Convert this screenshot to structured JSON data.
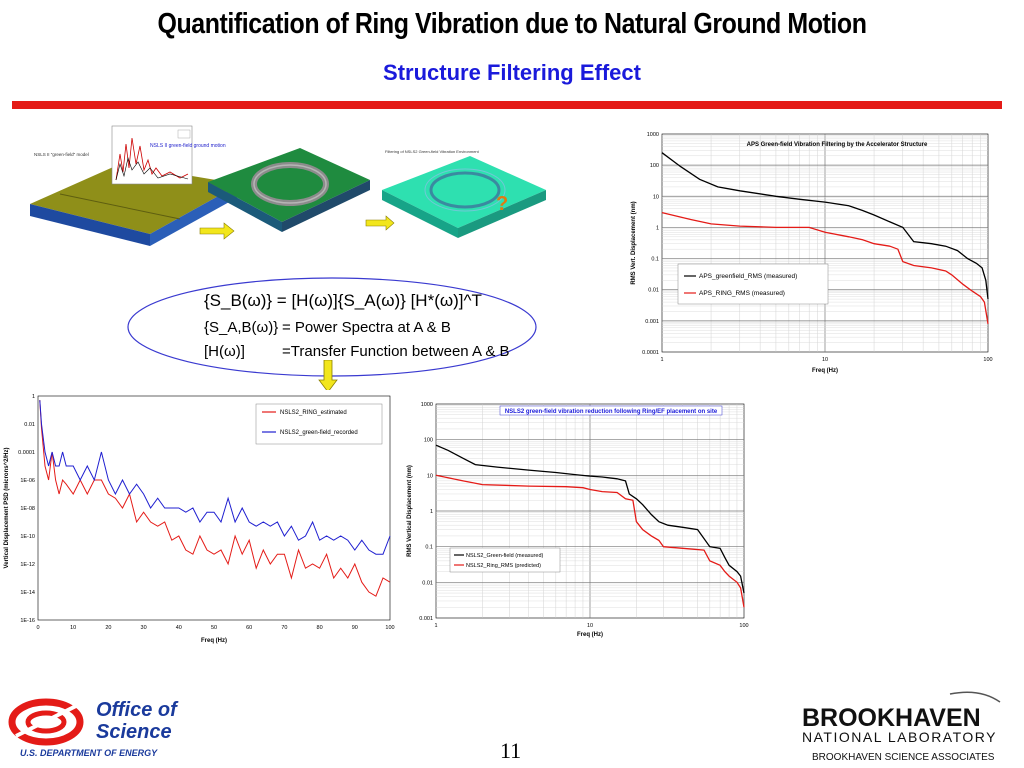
{
  "slide": {
    "title": "Quantification of Ring Vibration due to Natural Ground Motion",
    "subtitle": "Structure Filtering Effect",
    "page_number": "11",
    "accent_color": "#e41b17",
    "subtitle_color": "#1a1adb"
  },
  "illustration": {
    "model_label": "NSLS II \"green-field\" model",
    "ground_motion_label": "NSLS II green-field ground motion",
    "filtering_label": "Filtering of NSLS2 Green-field Vibration Environment",
    "question_mark": "?",
    "arrow_icon": "right-arrow-icon",
    "down_arrow_icon": "down-arrow-icon"
  },
  "equations": {
    "line1": "{S_B(ω)} = [H(ω)]{S_A(ω)} [H*(ω)]^T",
    "line2_lhs": "{S_A,B(ω)}",
    "line2_rhs": "= Power Spectra at A & B",
    "line3_lhs": "[H(ω)]",
    "line3_rhs": "=Transfer Function between A & B"
  },
  "chart_data": [
    {
      "id": "aps",
      "type": "line",
      "title": "APS Green-field Vibration Filtering by the Accelerator Structure",
      "xlabel": "Freq (Hz)",
      "ylabel": "RMS Vert. Displacement (nm)",
      "xscale": "log",
      "yscale": "log",
      "xlim": [
        1,
        100
      ],
      "ylim": [
        0.0001,
        1000
      ],
      "xticks": [
        "1",
        "10",
        "100"
      ],
      "yticks": [
        "0.0001",
        "0.001",
        "0.01",
        "0.1",
        "1",
        "10",
        "100",
        "1000"
      ],
      "grid": true,
      "legend_position": "center-left",
      "series": [
        {
          "name": "APS_greenfield_RMS (measured)",
          "color": "#000000",
          "points": [
            [
              1,
              250
            ],
            [
              1.3,
              90
            ],
            [
              1.7,
              35
            ],
            [
              2.2,
              20
            ],
            [
              3,
              15
            ],
            [
              5,
              10
            ],
            [
              7,
              8
            ],
            [
              10,
              6.5
            ],
            [
              14,
              5
            ],
            [
              17,
              3.5
            ],
            [
              20,
              2.5
            ],
            [
              25,
              1.5
            ],
            [
              30,
              1
            ],
            [
              35,
              0.35
            ],
            [
              45,
              0.3
            ],
            [
              55,
              0.25
            ],
            [
              65,
              0.18
            ],
            [
              75,
              0.1
            ],
            [
              85,
              0.07
            ],
            [
              92,
              0.05
            ],
            [
              97,
              0.02
            ],
            [
              100,
              0.005
            ]
          ]
        },
        {
          "name": "APS_RING_RMS (measured)",
          "color": "#e41b17",
          "points": [
            [
              1,
              3
            ],
            [
              1.5,
              1.8
            ],
            [
              2,
              1.3
            ],
            [
              3,
              1.1
            ],
            [
              5,
              1
            ],
            [
              8,
              1
            ],
            [
              10,
              0.7
            ],
            [
              14,
              0.5
            ],
            [
              17,
              0.4
            ],
            [
              20,
              0.3
            ],
            [
              25,
              0.25
            ],
            [
              28,
              0.2
            ],
            [
              30,
              0.08
            ],
            [
              35,
              0.06
            ],
            [
              45,
              0.05
            ],
            [
              55,
              0.04
            ],
            [
              60,
              0.03
            ],
            [
              70,
              0.015
            ],
            [
              80,
              0.009
            ],
            [
              90,
              0.006
            ],
            [
              95,
              0.004
            ],
            [
              100,
              0.0008
            ]
          ]
        }
      ]
    },
    {
      "id": "psd",
      "type": "line",
      "title": "",
      "xlabel": "Freq (Hz)",
      "ylabel": "Vertical Displacement PSD (microns^2/Hz)",
      "yscale": "log",
      "xlim": [
        0,
        100
      ],
      "ylim": [
        1e-16,
        1
      ],
      "xticks": [
        "0",
        "10",
        "20",
        "30",
        "40",
        "50",
        "60",
        "70",
        "80",
        "90",
        "100"
      ],
      "yticks": [
        "1E-16",
        "1E-14",
        "1E-12",
        "1E-10",
        "1E-08",
        "1E-06",
        "0.0001",
        "0.01",
        "1"
      ],
      "grid": false,
      "legend_position": "top-right",
      "series": [
        {
          "name": "NSLS2_RING_estimated",
          "color": "#e41b17",
          "x": [
            0.5,
            1,
            2,
            3,
            4,
            5,
            6,
            7,
            8,
            10,
            12,
            14,
            16,
            18,
            20,
            22,
            24,
            26,
            28,
            30,
            32,
            34,
            36,
            38,
            40,
            42,
            44,
            46,
            48,
            50,
            52,
            54,
            56,
            58,
            60,
            62,
            64,
            66,
            68,
            70,
            72,
            74,
            76,
            78,
            80,
            82,
            84,
            86,
            88,
            90,
            92,
            94,
            96,
            98,
            100
          ],
          "y": [
            0.5,
            0.005,
            1e-05,
            1e-06,
            0.0001,
            1e-06,
            1e-07,
            1e-06,
            5e-07,
            1e-07,
            1e-06,
            1e-07,
            1e-06,
            1e-06,
            1e-07,
            5e-08,
            1e-08,
            1e-07,
            1e-09,
            5e-09,
            1e-09,
            5e-10,
            1e-09,
            5e-11,
            1e-10,
            1e-11,
            5e-12,
            1e-10,
            1e-11,
            5e-12,
            1e-11,
            1e-12,
            1e-10,
            5e-12,
            5e-11,
            5e-13,
            1e-11,
            1e-12,
            5e-12,
            5e-12,
            1e-13,
            1e-11,
            5e-13,
            1e-12,
            5e-13,
            5e-12,
            1e-13,
            5e-13,
            1e-13,
            1e-12,
            5e-14,
            1e-14,
            5e-15,
            1e-13,
            5e-14
          ]
        },
        {
          "name": "NSLS2_green-field_recorded",
          "color": "#1f1fd0",
          "x": [
            0.5,
            1,
            2,
            3,
            4,
            5,
            6,
            7,
            8,
            10,
            12,
            14,
            16,
            18,
            20,
            22,
            24,
            26,
            28,
            30,
            32,
            34,
            36,
            38,
            40,
            42,
            44,
            46,
            48,
            50,
            52,
            54,
            56,
            58,
            60,
            62,
            64,
            66,
            68,
            70,
            72,
            74,
            76,
            78,
            80,
            82,
            84,
            86,
            88,
            90,
            92,
            94,
            96,
            98,
            100
          ],
          "y": [
            0.5,
            0.01,
            0.0001,
            1e-05,
            0.0001,
            1e-05,
            1e-05,
            0.0001,
            1e-05,
            1e-05,
            1e-06,
            1e-05,
            1e-06,
            0.0001,
            1e-06,
            1e-07,
            1e-06,
            1e-07,
            5e-07,
            1e-07,
            1e-08,
            5e-08,
            1e-08,
            1e-08,
            1e-08,
            5e-09,
            1e-08,
            1e-09,
            5e-09,
            5e-09,
            1e-09,
            5e-08,
            1e-09,
            1e-08,
            1e-09,
            5e-10,
            1e-09,
            5e-10,
            1e-09,
            1e-10,
            5e-10,
            5e-11,
            1e-10,
            1e-09,
            5e-11,
            1e-10,
            5e-11,
            1e-10,
            5e-11,
            1e-11,
            5e-11,
            1e-11,
            5e-12,
            5e-12,
            1e-10
          ]
        }
      ]
    },
    {
      "id": "nsls2",
      "type": "line",
      "title": "NSLS2 green-field vibration reduction  following Ring/EF placement on site",
      "xlabel": "Freq (Hz)",
      "ylabel": "RMS Vertical Displacement (nm)",
      "xscale": "log",
      "yscale": "log",
      "xlim": [
        1,
        100
      ],
      "ylim": [
        0.001,
        1000
      ],
      "xticks": [
        "1",
        "10",
        "100"
      ],
      "yticks": [
        "0.001",
        "0.01",
        "0.1",
        "1",
        "10",
        "100",
        "1000"
      ],
      "grid": true,
      "legend_position": "bottom-left",
      "series": [
        {
          "name": "NSLS2_Green-field (measured)",
          "color": "#000000",
          "points": [
            [
              1,
              70
            ],
            [
              1.2,
              50
            ],
            [
              1.5,
              30
            ],
            [
              1.8,
              20
            ],
            [
              2.5,
              17
            ],
            [
              4,
              14
            ],
            [
              6,
              12
            ],
            [
              8,
              10.5
            ],
            [
              10,
              9.5
            ],
            [
              12,
              9
            ],
            [
              15,
              8
            ],
            [
              17,
              7
            ],
            [
              18,
              3
            ],
            [
              20,
              2.2
            ],
            [
              22,
              1.5
            ],
            [
              25,
              0.8
            ],
            [
              28,
              0.5
            ],
            [
              32,
              0.4
            ],
            [
              40,
              0.35
            ],
            [
              50,
              0.3
            ],
            [
              60,
              0.1
            ],
            [
              70,
              0.09
            ],
            [
              75,
              0.05
            ],
            [
              80,
              0.03
            ],
            [
              90,
              0.02
            ],
            [
              95,
              0.015
            ],
            [
              100,
              0.005
            ]
          ]
        },
        {
          "name": "NSLS2_Ring_RMS (predicted)",
          "color": "#e41b17",
          "points": [
            [
              1,
              10
            ],
            [
              1.5,
              7
            ],
            [
              2,
              5.5
            ],
            [
              4,
              5
            ],
            [
              7,
              4.8
            ],
            [
              9,
              4.5
            ],
            [
              10,
              4
            ],
            [
              12,
              3.5
            ],
            [
              15,
              3.3
            ],
            [
              17,
              2.2
            ],
            [
              19,
              2
            ],
            [
              20,
              0.5
            ],
            [
              22,
              0.3
            ],
            [
              25,
              0.2
            ],
            [
              28,
              0.15
            ],
            [
              30,
              0.1
            ],
            [
              40,
              0.09
            ],
            [
              55,
              0.08
            ],
            [
              60,
              0.04
            ],
            [
              70,
              0.03
            ],
            [
              75,
              0.02
            ],
            [
              80,
              0.015
            ],
            [
              90,
              0.01
            ],
            [
              95,
              0.007
            ],
            [
              100,
              0.002
            ]
          ]
        }
      ]
    }
  ],
  "footer": {
    "doe_logo_line1": "Office of",
    "doe_logo_line2": "Science",
    "doe_logo_line3": "U.S. DEPARTMENT OF ENERGY",
    "bnl_logo_line1": "BROOKHAVEN",
    "bnl_logo_line2": "NATIONAL LABORATORY",
    "bnl_logo_line3": "BROOKHAVEN SCIENCE ASSOCIATES"
  }
}
